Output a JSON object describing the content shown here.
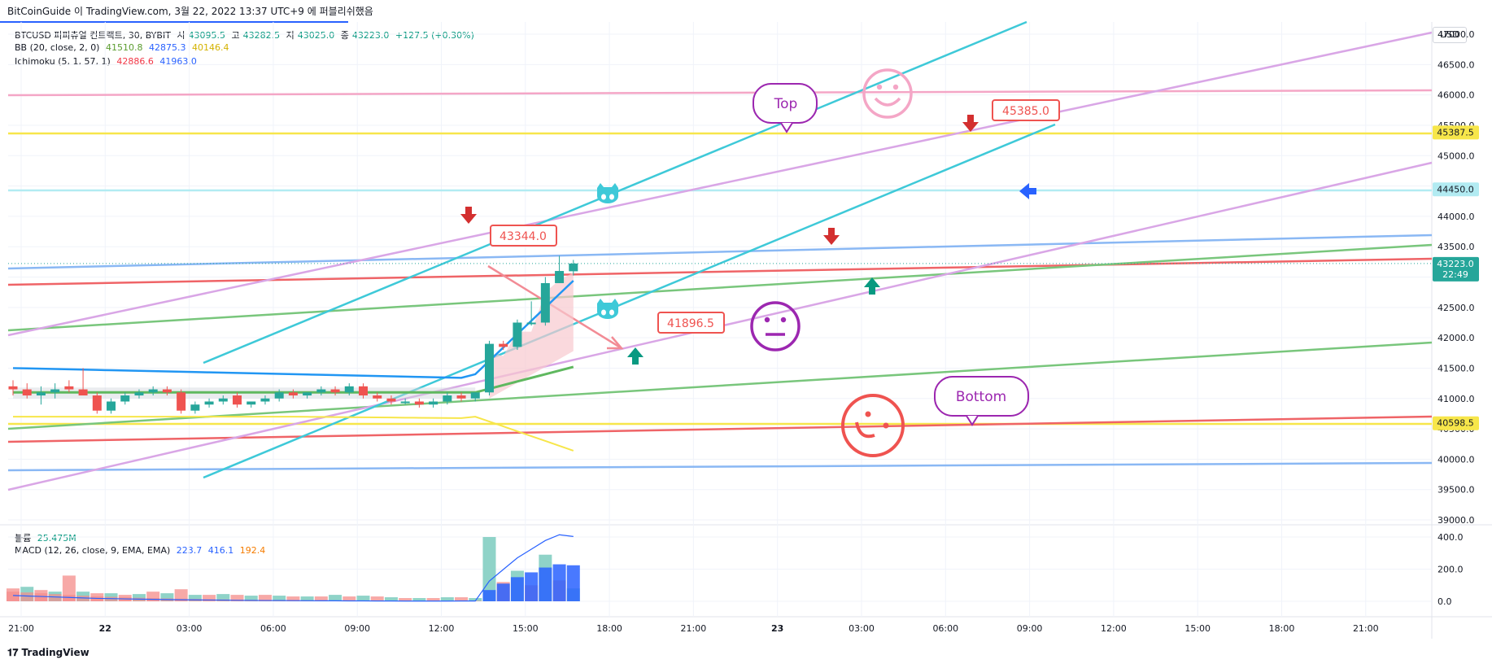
{
  "header": {
    "publish_text": "BitCoinGuide 이 TradingView.com, 3월 22, 2022 13:37 UTC+9 에 퍼블리쉬했음"
  },
  "legend": {
    "symbol": "BTCUSD 퍼피츄얼 컨트랙트, 30, BYBIT",
    "o_label": "시",
    "o_val": "43095.5",
    "h_label": "고",
    "h_val": "43282.5",
    "l_label": "저",
    "l_val": "43025.0",
    "c_label": "종",
    "c_val": "43223.0",
    "change": "+127.5 (+0.30%)",
    "bb_label": "BB (20, close, 2, 0)",
    "bb_basis": "41510.8",
    "bb_upper": "42875.3",
    "bb_lower": "40146.4",
    "ichi_label": "Ichimoku (5, 1, 57, 1)",
    "ichi_a": "42886.6",
    "ichi_b": "41963.0",
    "vol_label": "볼륨",
    "vol_val": "25.475M",
    "macd_label": "MACD (12, 26, close, 9, EMA, EMA)",
    "macd_hist": "223.7",
    "macd_line": "416.1",
    "macd_signal": "192.4"
  },
  "currency": "USD",
  "footer": {
    "logo": "TradingView"
  },
  "colors": {
    "up": "#26a69a",
    "down": "#ef5350",
    "cyan": "#3ec9d8",
    "lavender": "#d9a6e6",
    "pink": "#f4a6c6",
    "yellow": "#f7e64a",
    "lightblue": "#8ab8f4",
    "green": "#79c67c",
    "red": "#ef6467",
    "purple": "#9c27b0"
  },
  "annotations": {
    "top": "Top",
    "bottom": "Bottom",
    "price1": "43344.0",
    "price2": "41896.5",
    "price3": "45385.0"
  },
  "chart_data": {
    "type": "candlestick",
    "symbol": "BTCUSD",
    "interval": "30",
    "ylim": [
      38950,
      47050
    ],
    "y_ticks": [
      "39000.0",
      "39500.0",
      "40000.0",
      "40500.0",
      "41000.0",
      "41500.0",
      "42000.0",
      "42500.0",
      "43000.0",
      "43500.0",
      "44000.0",
      "44500.0",
      "45000.0",
      "45500.0",
      "46000.0",
      "46500.0",
      "47000.0"
    ],
    "price_tags": [
      {
        "label": "45387.5",
        "value": 45387.5,
        "bg": "#f7e64a",
        "fg": "#131722"
      },
      {
        "label": "44450.0",
        "value": 44450,
        "bg": "#b2ebf2",
        "fg": "#131722"
      },
      {
        "label": "43223.0",
        "value": 43223,
        "bg": "#26a69a",
        "fg": "#ffffff",
        "sub": "22:49"
      },
      {
        "label": "40598.5",
        "value": 40598.5,
        "bg": "#f7e64a",
        "fg": "#131722"
      }
    ],
    "x_ticks": [
      "21:00",
      "22",
      "03:00",
      "06:00",
      "09:00",
      "12:00",
      "15:00",
      "18:00",
      "21:00",
      "23",
      "03:00",
      "06:00",
      "09:00",
      "12:00",
      "15:00",
      "18:00",
      "21:00"
    ],
    "candles": [
      {
        "o": 41200,
        "h": 41300,
        "l": 41050,
        "c": 41150
      },
      {
        "o": 41150,
        "h": 41250,
        "l": 41000,
        "c": 41050
      },
      {
        "o": 41050,
        "h": 41200,
        "l": 40900,
        "c": 41100
      },
      {
        "o": 41100,
        "h": 41250,
        "l": 41000,
        "c": 41150
      },
      {
        "o": 41200,
        "h": 41300,
        "l": 41100,
        "c": 41150
      },
      {
        "o": 41150,
        "h": 41500,
        "l": 41050,
        "c": 41050
      },
      {
        "o": 41050,
        "h": 41100,
        "l": 40750,
        "c": 40800
      },
      {
        "o": 40800,
        "h": 41000,
        "l": 40750,
        "c": 40950
      },
      {
        "o": 40950,
        "h": 41100,
        "l": 40900,
        "c": 41050
      },
      {
        "o": 41050,
        "h": 41150,
        "l": 41000,
        "c": 41100
      },
      {
        "o": 41100,
        "h": 41200,
        "l": 41050,
        "c": 41150
      },
      {
        "o": 41150,
        "h": 41200,
        "l": 41050,
        "c": 41100
      },
      {
        "o": 41100,
        "h": 41150,
        "l": 40750,
        "c": 40800
      },
      {
        "o": 40800,
        "h": 40950,
        "l": 40750,
        "c": 40900
      },
      {
        "o": 40900,
        "h": 41000,
        "l": 40850,
        "c": 40950
      },
      {
        "o": 40950,
        "h": 41050,
        "l": 40900,
        "c": 41000
      },
      {
        "o": 41050,
        "h": 41100,
        "l": 40850,
        "c": 40900
      },
      {
        "o": 40900,
        "h": 40950,
        "l": 40850,
        "c": 40950
      },
      {
        "o": 40950,
        "h": 41050,
        "l": 40900,
        "c": 41000
      },
      {
        "o": 41000,
        "h": 41150,
        "l": 40950,
        "c": 41100
      },
      {
        "o": 41100,
        "h": 41150,
        "l": 41000,
        "c": 41050
      },
      {
        "o": 41050,
        "h": 41100,
        "l": 41000,
        "c": 41100
      },
      {
        "o": 41100,
        "h": 41200,
        "l": 41050,
        "c": 41150
      },
      {
        "o": 41150,
        "h": 41200,
        "l": 41050,
        "c": 41100
      },
      {
        "o": 41100,
        "h": 41250,
        "l": 41050,
        "c": 41200
      },
      {
        "o": 41200,
        "h": 41250,
        "l": 41000,
        "c": 41050
      },
      {
        "o": 41050,
        "h": 41100,
        "l": 40950,
        "c": 41000
      },
      {
        "o": 41000,
        "h": 41050,
        "l": 40900,
        "c": 40950
      },
      {
        "o": 40950,
        "h": 41000,
        "l": 40900,
        "c": 40950
      },
      {
        "o": 40950,
        "h": 41000,
        "l": 40850,
        "c": 40900
      },
      {
        "o": 40900,
        "h": 41000,
        "l": 40850,
        "c": 40950
      },
      {
        "o": 40950,
        "h": 41100,
        "l": 40900,
        "c": 41050
      },
      {
        "o": 41050,
        "h": 41100,
        "l": 40950,
        "c": 41000
      },
      {
        "o": 41000,
        "h": 41100,
        "l": 40950,
        "c": 41100
      },
      {
        "o": 41100,
        "h": 41950,
        "l": 41050,
        "c": 41900
      },
      {
        "o": 41900,
        "h": 41950,
        "l": 41800,
        "c": 41850
      },
      {
        "o": 41850,
        "h": 42300,
        "l": 41800,
        "c": 42250
      },
      {
        "o": 42250,
        "h": 42600,
        "l": 42200,
        "c": 42250
      },
      {
        "o": 42250,
        "h": 43000,
        "l": 42200,
        "c": 42900
      },
      {
        "o": 42900,
        "h": 43350,
        "l": 42900,
        "c": 43100
      },
      {
        "o": 43095.5,
        "h": 43282.5,
        "l": 43025.0,
        "c": 43223.0
      }
    ],
    "volume": [
      {
        "v": 80,
        "up": false
      },
      {
        "v": 90,
        "up": true
      },
      {
        "v": 70,
        "up": false
      },
      {
        "v": 60,
        "up": true
      },
      {
        "v": 160,
        "up": false
      },
      {
        "v": 60,
        "up": true
      },
      {
        "v": 50,
        "up": false
      },
      {
        "v": 50,
        "up": true
      },
      {
        "v": 40,
        "up": false
      },
      {
        "v": 45,
        "up": true
      },
      {
        "v": 60,
        "up": false
      },
      {
        "v": 50,
        "up": true
      },
      {
        "v": 75,
        "up": false
      },
      {
        "v": 40,
        "up": true
      },
      {
        "v": 40,
        "up": false
      },
      {
        "v": 45,
        "up": true
      },
      {
        "v": 40,
        "up": false
      },
      {
        "v": 35,
        "up": true
      },
      {
        "v": 40,
        "up": false
      },
      {
        "v": 35,
        "up": true
      },
      {
        "v": 30,
        "up": false
      },
      {
        "v": 30,
        "up": true
      },
      {
        "v": 30,
        "up": false
      },
      {
        "v": 40,
        "up": true
      },
      {
        "v": 30,
        "up": false
      },
      {
        "v": 35,
        "up": true
      },
      {
        "v": 30,
        "up": false
      },
      {
        "v": 25,
        "up": true
      },
      {
        "v": 20,
        "up": false
      },
      {
        "v": 20,
        "up": true
      },
      {
        "v": 20,
        "up": false
      },
      {
        "v": 25,
        "up": true
      },
      {
        "v": 25,
        "up": false
      },
      {
        "v": 20,
        "up": true
      },
      {
        "v": 400,
        "up": true
      },
      {
        "v": 120,
        "up": false
      },
      {
        "v": 190,
        "up": true
      },
      {
        "v": 100,
        "up": false
      },
      {
        "v": 290,
        "up": true
      },
      {
        "v": 130,
        "up": false
      },
      {
        "v": 80,
        "up": true
      }
    ],
    "vol_ticks": [
      "400.0",
      "200.0",
      "0.0"
    ]
  }
}
